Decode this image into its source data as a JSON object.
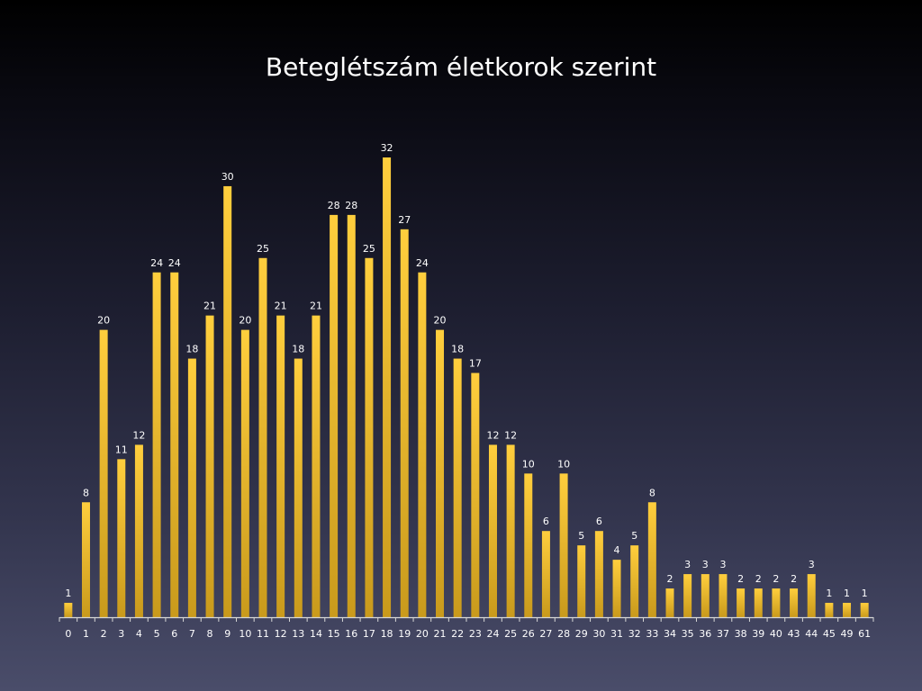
{
  "chart_data": {
    "type": "bar",
    "title": "Beteglétszám életkorok szerint",
    "xlabel": "",
    "ylabel": "",
    "ylim": [
      0,
      32
    ],
    "grid": false,
    "legend": "none",
    "categories": [
      "0",
      "1",
      "2",
      "3",
      "4",
      "5",
      "6",
      "7",
      "8",
      "9",
      "10",
      "11",
      "12",
      "13",
      "14",
      "15",
      "16",
      "17",
      "18",
      "19",
      "20",
      "21",
      "22",
      "23",
      "24",
      "25",
      "26",
      "27",
      "28",
      "29",
      "30",
      "31",
      "32",
      "33",
      "34",
      "35",
      "36",
      "37",
      "38",
      "39",
      "40",
      "43",
      "44",
      "45",
      "49",
      "61"
    ],
    "values": [
      1,
      8,
      20,
      11,
      12,
      24,
      24,
      18,
      21,
      30,
      20,
      25,
      21,
      18,
      21,
      28,
      28,
      25,
      32,
      27,
      24,
      20,
      18,
      17,
      12,
      12,
      10,
      6,
      10,
      5,
      6,
      4,
      5,
      8,
      2,
      3,
      3,
      3,
      2,
      2,
      2,
      2,
      3,
      1,
      1,
      1
    ],
    "bar_color_top": "#ffce3d",
    "bar_color_bottom": "#c99a1c"
  }
}
